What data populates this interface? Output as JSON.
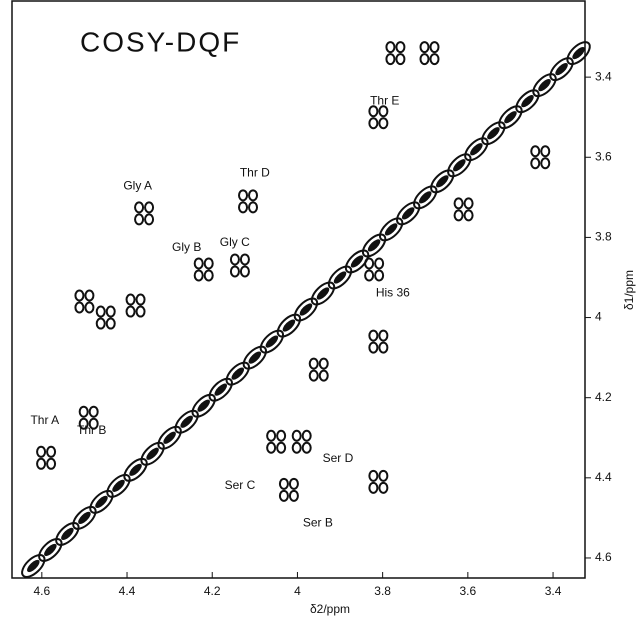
{
  "chart_data": {
    "type": "scatter",
    "title": "COSY-DQF",
    "x_label": "δ2/ppm",
    "y_label": "δ1/ppm",
    "xlim": [
      4.67,
      3.325
    ],
    "ylim": [
      3.21,
      4.65
    ],
    "xticks": [
      4.6,
      4.4,
      4.2,
      4.0,
      3.8,
      3.6,
      3.4
    ],
    "yticks": [
      3.4,
      3.6,
      3.8,
      4.0,
      4.2,
      4.4,
      4.6
    ],
    "color": "#111",
    "series": [
      {
        "x": [
          4.36,
          4.116,
          4.5,
          4.45,
          4.38,
          4.22,
          4.135,
          3.81,
          3.82,
          4.05,
          3.99,
          4.02,
          4.59,
          4.49,
          3.95,
          3.81,
          3.81,
          3.69,
          3.43,
          3.61,
          3.77
        ],
        "values": [
          3.74,
          3.71,
          3.96,
          4.0,
          3.97,
          3.88,
          3.87,
          3.5,
          3.88,
          4.31,
          4.31,
          4.43,
          4.35,
          4.25,
          4.13,
          4.06,
          4.41,
          3.34,
          3.6,
          3.73,
          3.34
        ]
      },
      {
        "x": [
          4.62,
          4.58,
          4.54,
          4.5,
          4.46,
          4.42,
          4.38,
          4.34,
          4.3,
          4.26,
          4.22,
          4.18,
          4.14,
          4.1,
          4.06,
          4.02,
          3.98,
          3.94,
          3.9,
          3.86,
          3.82,
          3.78,
          3.74,
          3.7,
          3.66,
          3.62,
          3.58,
          3.54,
          3.5,
          3.46,
          3.42,
          3.38,
          3.34
        ],
        "values": [
          4.62,
          4.58,
          4.54,
          4.5,
          4.46,
          4.42,
          4.38,
          4.34,
          4.3,
          4.26,
          4.22,
          4.18,
          4.14,
          4.1,
          4.06,
          4.02,
          3.98,
          3.94,
          3.9,
          3.86,
          3.82,
          3.78,
          3.74,
          3.7,
          3.66,
          3.62,
          3.58,
          3.54,
          3.5,
          3.46,
          3.42,
          3.38,
          3.34
        ]
      }
    ],
    "annotations": [
      {
        "text": "Gly A",
        "x": 4.375,
        "y": 3.672
      },
      {
        "text": "Thr D",
        "x": 4.1,
        "y": 3.64
      },
      {
        "text": "Gly B",
        "x": 4.26,
        "y": 3.826
      },
      {
        "text": "Gly C",
        "x": 4.147,
        "y": 3.814
      },
      {
        "text": "Thr E",
        "x": 3.795,
        "y": 3.46
      },
      {
        "text": "His 36",
        "x": 3.776,
        "y": 3.94
      },
      {
        "text": "Ser D",
        "x": 3.905,
        "y": 4.353
      },
      {
        "text": "Ser C",
        "x": 4.135,
        "y": 4.42
      },
      {
        "text": "Ser B",
        "x": 3.952,
        "y": 4.513
      },
      {
        "text": "Thr A",
        "x": 4.593,
        "y": 4.258
      },
      {
        "text": "Thr B",
        "x": 4.483,
        "y": 4.283
      }
    ]
  }
}
